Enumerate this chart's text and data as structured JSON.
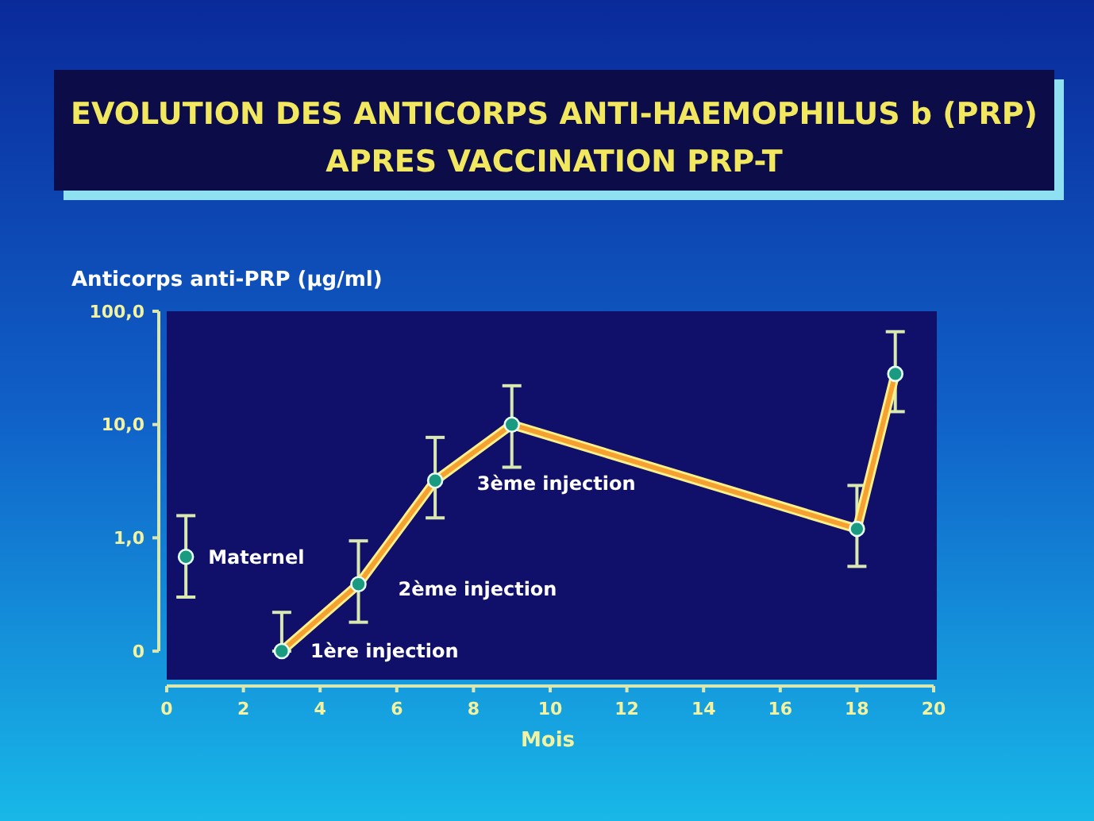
{
  "chart_data": {
    "type": "line",
    "title": "EVOLUTION DES ANTICORPS ANTI-HAEMOPHILUS b (PRP)\nAPRES VACCINATION PRP-T",
    "xlabel": "Mois",
    "ylabel": "Anticorps anti-PRP (µg/ml)",
    "log": "y",
    "xlim": [
      0,
      20
    ],
    "xticks": [
      0,
      2,
      4,
      6,
      8,
      10,
      12,
      14,
      16,
      18,
      20
    ],
    "ylim": [
      0.056,
      100
    ],
    "yticks": [
      {
        "value": 0.1,
        "label": "0"
      },
      {
        "value": 1,
        "label": "1,0"
      },
      {
        "value": 10,
        "label": "10,0"
      },
      {
        "value": 100,
        "label": "100,0"
      }
    ],
    "marker": "circle",
    "line_style": "solid",
    "series": [
      {
        "type": "scatter",
        "color": "#1a9a80",
        "x": [
          0.5
        ],
        "values": [
          0.68
        ],
        "errors": [
          [
            0.3,
            1.57
          ]
        ]
      },
      {
        "color": "#f5a030",
        "x": [
          3,
          5,
          7,
          9,
          18,
          19
        ],
        "values": [
          0.1,
          0.39,
          3.2,
          10,
          1.2,
          28
        ],
        "errors": [
          [
            0.1,
            0.22
          ],
          [
            0.18,
            0.94
          ],
          [
            1.5,
            7.7
          ],
          [
            4.2,
            22
          ],
          [
            0.56,
            2.9
          ],
          [
            13,
            66
          ]
        ]
      }
    ],
    "annotations": [
      {
        "text": "Maternel",
        "x": 0.5,
        "y": 0.68
      },
      {
        "text": "1ère injection",
        "x": 3,
        "y": 0.1
      },
      {
        "text": "2ème injection",
        "x": 5,
        "y": 0.39
      },
      {
        "text": "3ème injection",
        "x": 9,
        "y": 10
      }
    ]
  }
}
